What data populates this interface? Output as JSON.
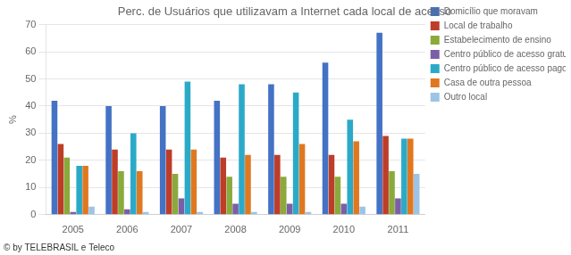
{
  "chart_data": {
    "type": "bar",
    "title": "Perc. de Usuários que utilizavam a Internet cada local de acesso",
    "ylabel": "%",
    "annotations": [
      "© by TELEBRASIL e Teleco"
    ],
    "categories": [
      "2005",
      "2006",
      "2007",
      "2008",
      "2009",
      "2010",
      "2011"
    ],
    "series": [
      {
        "name": "Domicílio que moravam",
        "color": "#4472c4",
        "values": [
          42,
          40,
          40,
          42,
          48,
          56,
          67
        ]
      },
      {
        "name": "Local de trabalho",
        "color": "#be3d28",
        "values": [
          26,
          24,
          24,
          21,
          22,
          22,
          29
        ]
      },
      {
        "name": "Estabelecimento de ensino",
        "color": "#8aaa3c",
        "values": [
          21,
          16,
          15,
          14,
          14,
          14,
          16
        ]
      },
      {
        "name": "Centro público de acesso gratuito",
        "color": "#7b5ea7",
        "values": [
          1,
          2,
          6,
          4,
          4,
          4,
          6
        ]
      },
      {
        "name": "Centro público de acesso pago",
        "color": "#2baac8",
        "values": [
          18,
          30,
          49,
          48,
          45,
          35,
          28
        ]
      },
      {
        "name": "Casa de outra pessoa",
        "color": "#e07820",
        "values": [
          18,
          16,
          24,
          22,
          26,
          27,
          28
        ]
      },
      {
        "name": "Outro local",
        "color": "#9dc3e6",
        "values": [
          3,
          1,
          1,
          1,
          1,
          3,
          15
        ]
      }
    ],
    "ylim": [
      0,
      70
    ],
    "yticks": [
      0,
      10,
      20,
      30,
      40,
      50,
      60,
      70
    ],
    "grid": true,
    "legend": "right"
  }
}
